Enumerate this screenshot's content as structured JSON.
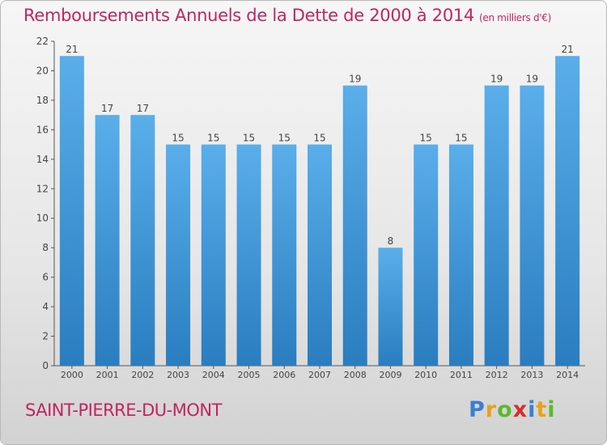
{
  "chart_data": {
    "type": "bar",
    "title": "Remboursements Annuels de la Dette de 2000 à 2014",
    "subtitle": "(en milliers d'€)",
    "xlabel": "",
    "ylabel": "",
    "categories": [
      "2000",
      "2001",
      "2002",
      "2003",
      "2004",
      "2005",
      "2006",
      "2007",
      "2008",
      "2009",
      "2010",
      "2011",
      "2012",
      "2013",
      "2014"
    ],
    "values": [
      21,
      17,
      17,
      15,
      15,
      15,
      15,
      15,
      19,
      8,
      15,
      15,
      19,
      19,
      21
    ],
    "ylim": [
      0,
      22
    ],
    "yticks": [
      0,
      2,
      4,
      6,
      8,
      10,
      12,
      14,
      16,
      18,
      20,
      22
    ],
    "grid": false,
    "legend": "none",
    "bar_color_light": "#5aaeea",
    "bar_color_dark": "#2a7dbf"
  },
  "place_name": "SAINT-PIERRE-DU-MONT",
  "logo": {
    "letters": [
      "P",
      "r",
      "o",
      "x",
      "i",
      "t",
      "i"
    ],
    "colors": [
      "#3a7fd0",
      "#e8a317",
      "#5db82e",
      "#d92d2d",
      "#3a7fd0",
      "#e8a317",
      "#5db82e"
    ]
  },
  "colors": {
    "title": "#c0255f",
    "axis": "#555555",
    "label_text": "#444444"
  }
}
